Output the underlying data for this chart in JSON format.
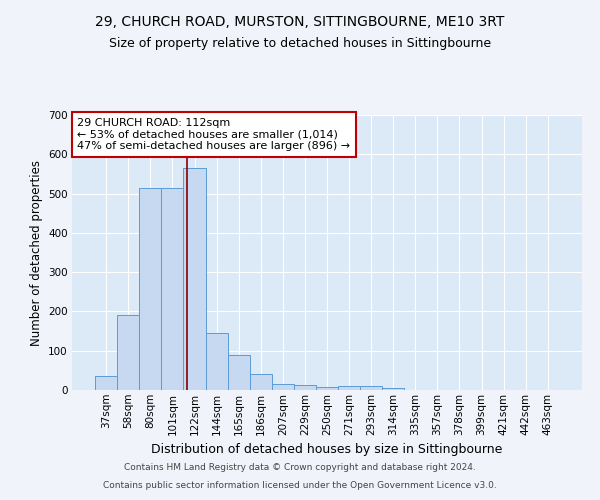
{
  "title": "29, CHURCH ROAD, MURSTON, SITTINGBOURNE, ME10 3RT",
  "subtitle": "Size of property relative to detached houses in Sittingbourne",
  "xlabel": "Distribution of detached houses by size in Sittingbourne",
  "ylabel": "Number of detached properties",
  "categories": [
    "37sqm",
    "58sqm",
    "80sqm",
    "101sqm",
    "122sqm",
    "144sqm",
    "165sqm",
    "186sqm",
    "207sqm",
    "229sqm",
    "250sqm",
    "271sqm",
    "293sqm",
    "314sqm",
    "335sqm",
    "357sqm",
    "378sqm",
    "399sqm",
    "421sqm",
    "442sqm",
    "463sqm"
  ],
  "values": [
    35,
    190,
    515,
    515,
    565,
    145,
    88,
    42,
    15,
    12,
    8,
    9,
    10,
    5,
    0,
    0,
    0,
    0,
    0,
    0,
    0
  ],
  "bar_color": "#c6d9f0",
  "bar_edge_color": "#5b9bd5",
  "background_color": "#dce9f7",
  "fig_background_color": "#f0f4fa",
  "grid_color": "#ffffff",
  "vline_x": 3.65,
  "vline_color": "#8b0000",
  "annotation_text": "29 CHURCH ROAD: 112sqm\n← 53% of detached houses are smaller (1,014)\n47% of semi-detached houses are larger (896) →",
  "annotation_box_color": "#ffffff",
  "annotation_box_edge": "#c00000",
  "footnote1": "Contains HM Land Registry data © Crown copyright and database right 2024.",
  "footnote2": "Contains public sector information licensed under the Open Government Licence v3.0.",
  "ylim": [
    0,
    700
  ],
  "title_fontsize": 10,
  "subtitle_fontsize": 9,
  "xlabel_fontsize": 9,
  "ylabel_fontsize": 8.5,
  "tick_fontsize": 7.5,
  "annotation_fontsize": 8,
  "footnote_fontsize": 6.5
}
